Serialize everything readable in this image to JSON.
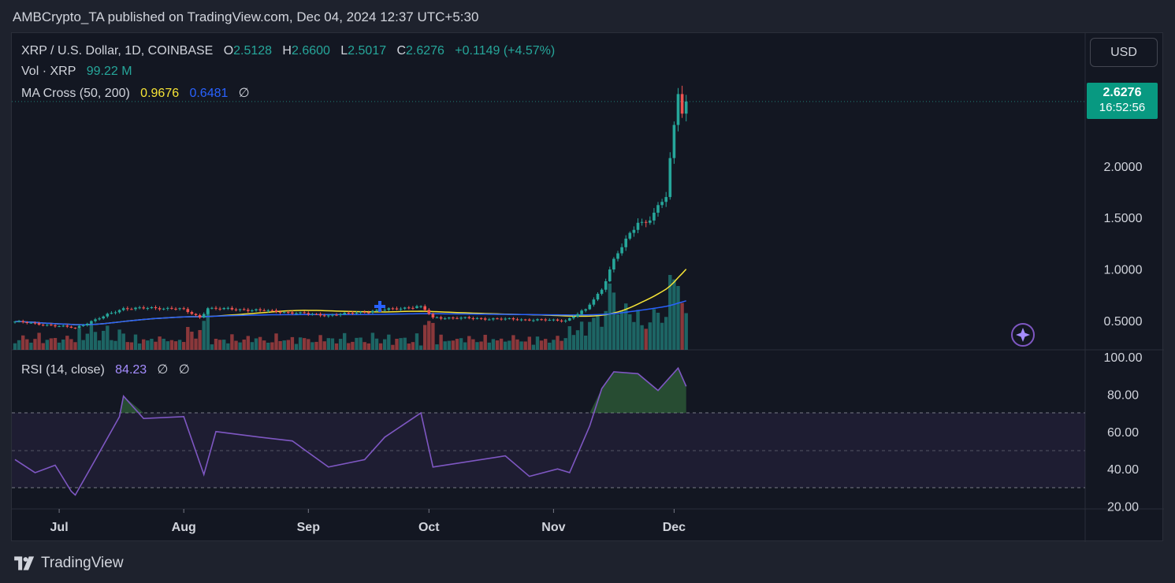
{
  "header": {
    "published": "AMBCrypto_TA published on TradingView.com, Dec 04, 2024 12:37 UTC+5:30"
  },
  "footer": {
    "brand": "TradingView"
  },
  "legend": {
    "symbol": "XRP / U.S. Dollar, 1D, COINBASE",
    "o_label": "O",
    "o_value": "2.5128",
    "h_label": "H",
    "h_value": "2.6600",
    "l_label": "L",
    "l_value": "2.5017",
    "c_label": "C",
    "c_value": "2.6276",
    "change": "+0.1149 (+4.57%)",
    "vol_label": "Vol · XRP",
    "vol_value": "99.22 M",
    "ma_label": "MA Cross (50, 200)",
    "ma50_value": "0.9676",
    "ma200_value": "0.6481",
    "ma_extra": "∅",
    "rsi_label": "RSI (14, close)",
    "rsi_value": "84.23",
    "rsi_extra1": "∅",
    "rsi_extra2": "∅"
  },
  "currency_button": "USD",
  "price_tag": {
    "value": "2.6276",
    "countdown": "16:52:56"
  },
  "colors": {
    "up": "#26a69a",
    "down": "#ef5350",
    "ma50": "#f7e436",
    "ma200": "#2962ff",
    "rsi": "#7e57c2"
  },
  "chart_data": [
    {
      "type": "candlestick",
      "title": "XRP / U.S. Dollar, 1D, COINBASE",
      "y_ticks": [
        "0.5000",
        "1.0000",
        "1.5000",
        "2.0000"
      ],
      "x_ticks": [
        "Jul",
        "Aug",
        "Sep",
        "Oct",
        "Nov",
        "Dec"
      ],
      "ohlc_anchor_points": [
        {
          "date": "2024-06-20",
          "close": 0.49
        },
        {
          "date": "2024-07-05",
          "close": 0.43
        },
        {
          "date": "2024-07-12",
          "close": 0.54
        },
        {
          "date": "2024-07-17",
          "close": 0.62
        },
        {
          "date": "2024-07-31",
          "close": 0.62
        },
        {
          "date": "2024-08-05",
          "close": 0.53
        },
        {
          "date": "2024-08-07",
          "close": 0.62
        },
        {
          "date": "2024-08-20",
          "close": 0.6
        },
        {
          "date": "2024-09-06",
          "close": 0.55
        },
        {
          "date": "2024-09-29",
          "close": 0.64
        },
        {
          "date": "2024-10-02",
          "close": 0.53
        },
        {
          "date": "2024-10-25",
          "close": 0.51
        },
        {
          "date": "2024-11-04",
          "close": 0.5
        },
        {
          "date": "2024-11-09",
          "close": 0.61
        },
        {
          "date": "2024-11-13",
          "close": 0.8
        },
        {
          "date": "2024-11-16",
          "close": 1.1
        },
        {
          "date": "2024-11-22",
          "close": 1.45
        },
        {
          "date": "2024-11-24",
          "close": 1.45
        },
        {
          "date": "2024-11-29",
          "close": 1.7
        },
        {
          "date": "2024-12-01",
          "close": 2.4
        },
        {
          "date": "2024-12-02",
          "close": 2.7
        },
        {
          "date": "2024-12-03",
          "close": 2.51
        },
        {
          "date": "2024-12-04",
          "open": 2.5128,
          "high": 2.66,
          "low": 2.5017,
          "close": 2.6276
        }
      ],
      "last_close": 2.6276,
      "ma50_last": 0.9676,
      "ma200_last": 0.6481,
      "volume_last": "99.22 M"
    },
    {
      "type": "line",
      "title": "RSI (14, close)",
      "y_ticks": [
        "20.00",
        "40.00",
        "60.00",
        "80.00",
        "100.00"
      ],
      "bands": [
        30,
        50,
        70
      ],
      "points": [
        {
          "date": "2024-06-20",
          "y": 45
        },
        {
          "date": "2024-06-25",
          "y": 38
        },
        {
          "date": "2024-06-30",
          "y": 42
        },
        {
          "date": "2024-07-04",
          "y": 28
        },
        {
          "date": "2024-07-05",
          "y": 26
        },
        {
          "date": "2024-07-10",
          "y": 45
        },
        {
          "date": "2024-07-16",
          "y": 68
        },
        {
          "date": "2024-07-17",
          "y": 79
        },
        {
          "date": "2024-07-22",
          "y": 67
        },
        {
          "date": "2024-08-01",
          "y": 68
        },
        {
          "date": "2024-08-06",
          "y": 37
        },
        {
          "date": "2024-08-09",
          "y": 60
        },
        {
          "date": "2024-08-20",
          "y": 57
        },
        {
          "date": "2024-08-28",
          "y": 55
        },
        {
          "date": "2024-09-06",
          "y": 41
        },
        {
          "date": "2024-09-15",
          "y": 45
        },
        {
          "date": "2024-09-20",
          "y": 57
        },
        {
          "date": "2024-09-29",
          "y": 70
        },
        {
          "date": "2024-10-02",
          "y": 41
        },
        {
          "date": "2024-10-20",
          "y": 47
        },
        {
          "date": "2024-10-26",
          "y": 36
        },
        {
          "date": "2024-11-02",
          "y": 40
        },
        {
          "date": "2024-11-05",
          "y": 38
        },
        {
          "date": "2024-11-10",
          "y": 63
        },
        {
          "date": "2024-11-13",
          "y": 83
        },
        {
          "date": "2024-11-16",
          "y": 92
        },
        {
          "date": "2024-11-22",
          "y": 91
        },
        {
          "date": "2024-11-27",
          "y": 82
        },
        {
          "date": "2024-12-02",
          "y": 94
        },
        {
          "date": "2024-12-04",
          "y": 84.23
        }
      ],
      "last_value": 84.23
    }
  ]
}
